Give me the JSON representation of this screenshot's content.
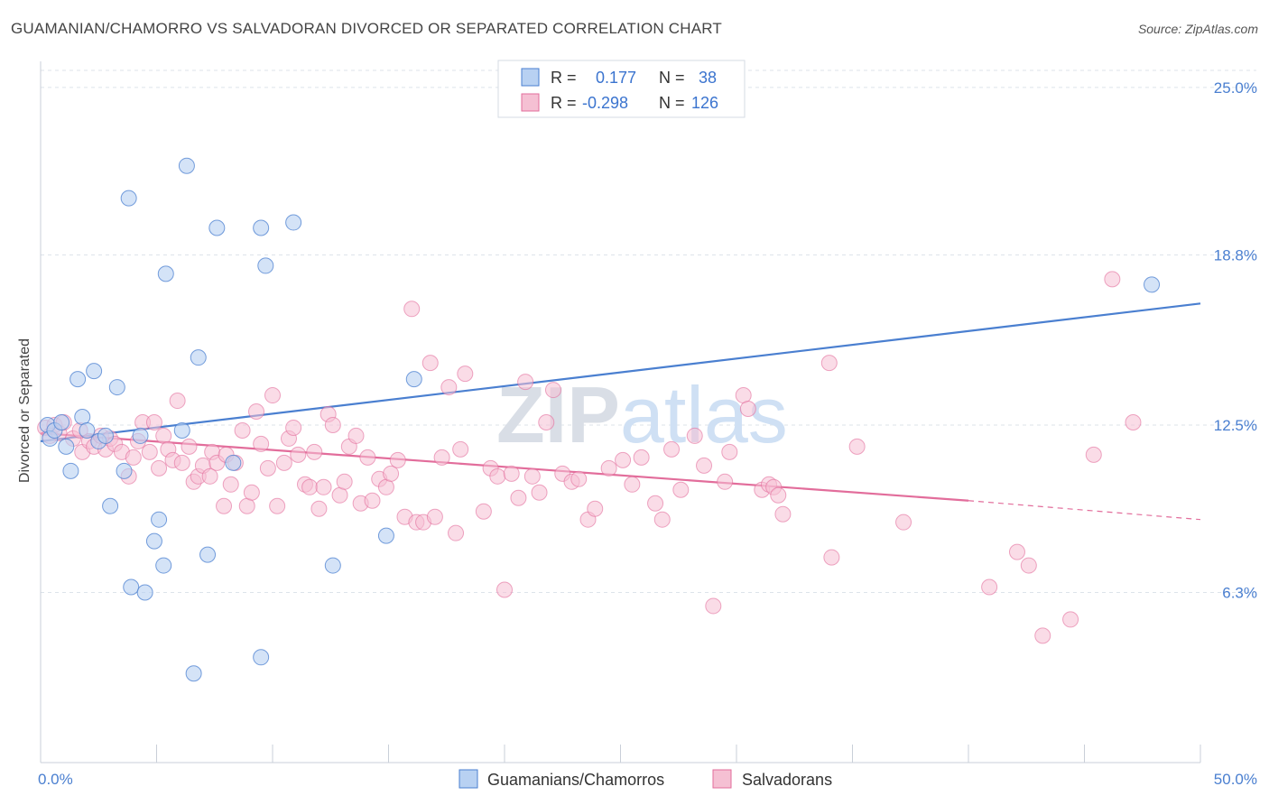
{
  "title": "GUAMANIAN/CHAMORRO VS SALVADORAN DIVORCED OR SEPARATED CORRELATION CHART",
  "source": "Source: ZipAtlas.com",
  "watermark": "ZIPatlas",
  "colors": {
    "blue": "#4a7fd0",
    "blue_fill": "#b8d1f2",
    "pink": "#e26d9b",
    "pink_fill": "#f5c0d3",
    "grid": "#dde3ea"
  },
  "legend_stats": [
    {
      "r_label": "R =",
      "r_value": "0.177",
      "n_label": "N =",
      "n_value": "38"
    },
    {
      "r_label": "R =",
      "r_value": "-0.298",
      "n_label": "N =",
      "n_value": "126"
    }
  ],
  "chart_data": {
    "type": "scatter",
    "title": "GUAMANIAN/CHAMORRO VS SALVADORAN DIVORCED OR SEPARATED CORRELATION CHART",
    "xlabel": "",
    "ylabel": "Divorced or Separated",
    "xlim": [
      0,
      50
    ],
    "ylim": [
      0,
      25.9
    ],
    "x_tick_labels": [
      "0.0%",
      "50.0%"
    ],
    "y_ticks": [
      6.3,
      12.5,
      18.8,
      25.0
    ],
    "y_tick_labels": [
      "6.3%",
      "12.5%",
      "18.8%",
      "25.0%"
    ],
    "grid": true,
    "legend_position": "top-center",
    "series": [
      {
        "name": "Guamanians/Chamorros",
        "color": "#4a7fd0",
        "trend": {
          "x": [
            0,
            50
          ],
          "y": [
            11.9,
            17.0
          ]
        },
        "points": [
          [
            0.3,
            12.5
          ],
          [
            0.4,
            12.0
          ],
          [
            0.6,
            12.3
          ],
          [
            0.9,
            12.6
          ],
          [
            1.1,
            11.7
          ],
          [
            1.3,
            10.8
          ],
          [
            1.6,
            14.2
          ],
          [
            1.8,
            12.8
          ],
          [
            2.0,
            12.3
          ],
          [
            2.3,
            14.5
          ],
          [
            2.5,
            11.9
          ],
          [
            2.8,
            12.1
          ],
          [
            3.0,
            9.5
          ],
          [
            3.3,
            13.9
          ],
          [
            3.6,
            10.8
          ],
          [
            3.8,
            20.9
          ],
          [
            3.9,
            6.5
          ],
          [
            4.3,
            12.1
          ],
          [
            4.5,
            6.3
          ],
          [
            4.9,
            8.2
          ],
          [
            5.1,
            9.0
          ],
          [
            5.3,
            7.3
          ],
          [
            5.4,
            18.1
          ],
          [
            6.1,
            12.3
          ],
          [
            6.3,
            22.1
          ],
          [
            6.6,
            3.3
          ],
          [
            6.8,
            15.0
          ],
          [
            7.2,
            7.7
          ],
          [
            7.6,
            19.8
          ],
          [
            8.3,
            11.1
          ],
          [
            9.5,
            3.9
          ],
          [
            9.5,
            19.8
          ],
          [
            9.7,
            18.4
          ],
          [
            10.9,
            20.0
          ],
          [
            12.6,
            7.3
          ],
          [
            14.9,
            8.4
          ],
          [
            16.1,
            14.2
          ],
          [
            47.9,
            17.7
          ]
        ]
      },
      {
        "name": "Salvadorans",
        "color": "#e26d9b",
        "trend": {
          "x": [
            0,
            40
          ],
          "y": [
            12.2,
            9.7
          ]
        },
        "trend_dashed": {
          "x": [
            40,
            50
          ],
          "y": [
            9.7,
            9.0
          ]
        },
        "points": [
          [
            0.2,
            12.4
          ],
          [
            0.4,
            12.1
          ],
          [
            0.6,
            12.5
          ],
          [
            0.8,
            12.2
          ],
          [
            1.0,
            12.6
          ],
          [
            1.4,
            12.0
          ],
          [
            1.7,
            12.3
          ],
          [
            1.8,
            11.5
          ],
          [
            2.1,
            11.9
          ],
          [
            2.3,
            11.7
          ],
          [
            2.6,
            12.1
          ],
          [
            2.8,
            11.6
          ],
          [
            3.0,
            12.0
          ],
          [
            3.2,
            11.8
          ],
          [
            3.5,
            11.5
          ],
          [
            3.8,
            10.6
          ],
          [
            4.0,
            11.3
          ],
          [
            4.2,
            11.9
          ],
          [
            4.4,
            12.6
          ],
          [
            4.7,
            11.5
          ],
          [
            4.9,
            12.6
          ],
          [
            5.1,
            10.9
          ],
          [
            5.3,
            12.1
          ],
          [
            5.5,
            11.6
          ],
          [
            5.7,
            11.2
          ],
          [
            5.9,
            13.4
          ],
          [
            6.1,
            11.1
          ],
          [
            6.4,
            11.7
          ],
          [
            6.6,
            10.4
          ],
          [
            6.8,
            10.6
          ],
          [
            7.0,
            11.0
          ],
          [
            7.3,
            10.6
          ],
          [
            7.4,
            11.5
          ],
          [
            7.6,
            11.1
          ],
          [
            7.9,
            9.5
          ],
          [
            8.0,
            11.4
          ],
          [
            8.2,
            10.3
          ],
          [
            8.4,
            11.1
          ],
          [
            8.7,
            12.3
          ],
          [
            8.9,
            9.5
          ],
          [
            9.1,
            10.0
          ],
          [
            9.3,
            13.0
          ],
          [
            9.5,
            11.8
          ],
          [
            9.8,
            10.9
          ],
          [
            10.0,
            13.6
          ],
          [
            10.2,
            9.5
          ],
          [
            10.5,
            11.1
          ],
          [
            10.7,
            12.0
          ],
          [
            10.9,
            12.4
          ],
          [
            11.1,
            11.4
          ],
          [
            11.4,
            10.3
          ],
          [
            11.6,
            10.2
          ],
          [
            11.8,
            11.5
          ],
          [
            12.0,
            9.4
          ],
          [
            12.2,
            10.2
          ],
          [
            12.4,
            12.9
          ],
          [
            12.6,
            12.5
          ],
          [
            12.9,
            9.9
          ],
          [
            13.1,
            10.4
          ],
          [
            13.3,
            11.7
          ],
          [
            13.6,
            12.1
          ],
          [
            13.8,
            9.6
          ],
          [
            14.1,
            11.3
          ],
          [
            14.3,
            9.7
          ],
          [
            14.6,
            10.5
          ],
          [
            14.9,
            10.2
          ],
          [
            15.1,
            10.7
          ],
          [
            15.4,
            11.2
          ],
          [
            15.7,
            9.1
          ],
          [
            16.0,
            16.8
          ],
          [
            16.2,
            8.9
          ],
          [
            16.5,
            8.9
          ],
          [
            16.8,
            14.8
          ],
          [
            17.0,
            9.1
          ],
          [
            17.3,
            11.3
          ],
          [
            17.6,
            13.9
          ],
          [
            17.9,
            8.5
          ],
          [
            18.1,
            11.6
          ],
          [
            18.3,
            14.4
          ],
          [
            19.1,
            9.3
          ],
          [
            19.4,
            10.9
          ],
          [
            19.7,
            10.6
          ],
          [
            20.0,
            6.4
          ],
          [
            20.3,
            10.7
          ],
          [
            20.6,
            9.8
          ],
          [
            20.9,
            14.1
          ],
          [
            21.2,
            10.6
          ],
          [
            21.5,
            10.0
          ],
          [
            21.8,
            12.6
          ],
          [
            22.1,
            13.8
          ],
          [
            22.5,
            10.7
          ],
          [
            22.9,
            10.4
          ],
          [
            23.2,
            10.5
          ],
          [
            23.6,
            9.0
          ],
          [
            23.9,
            9.4
          ],
          [
            24.5,
            10.9
          ],
          [
            25.1,
            11.2
          ],
          [
            25.5,
            10.3
          ],
          [
            25.9,
            11.3
          ],
          [
            26.5,
            9.6
          ],
          [
            26.8,
            9.0
          ],
          [
            27.2,
            11.6
          ],
          [
            27.6,
            10.1
          ],
          [
            28.2,
            12.1
          ],
          [
            28.6,
            11.0
          ],
          [
            29.0,
            5.8
          ],
          [
            29.5,
            10.4
          ],
          [
            29.7,
            11.5
          ],
          [
            30.3,
            13.6
          ],
          [
            30.5,
            13.1
          ],
          [
            31.1,
            10.1
          ],
          [
            31.4,
            10.3
          ],
          [
            31.6,
            10.2
          ],
          [
            31.8,
            9.9
          ],
          [
            32.0,
            9.2
          ],
          [
            34.0,
            14.8
          ],
          [
            34.1,
            7.6
          ],
          [
            35.2,
            11.7
          ],
          [
            37.2,
            8.9
          ],
          [
            40.9,
            6.5
          ],
          [
            42.1,
            7.8
          ],
          [
            42.6,
            7.3
          ],
          [
            43.2,
            4.7
          ],
          [
            44.4,
            5.3
          ],
          [
            45.4,
            11.4
          ],
          [
            46.2,
            17.9
          ],
          [
            47.1,
            12.6
          ]
        ]
      }
    ]
  }
}
